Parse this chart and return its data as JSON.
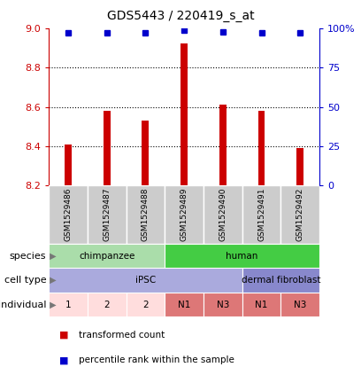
{
  "title": "GDS5443 / 220419_s_at",
  "samples": [
    "GSM1529486",
    "GSM1529487",
    "GSM1529488",
    "GSM1529489",
    "GSM1529490",
    "GSM1529491",
    "GSM1529492"
  ],
  "transformed_counts": [
    8.41,
    8.58,
    8.53,
    8.92,
    8.61,
    8.58,
    8.39
  ],
  "percentile_ranks": [
    97,
    97,
    97,
    99,
    97.5,
    97,
    97
  ],
  "ylim": [
    8.2,
    9.0
  ],
  "yticks": [
    8.2,
    8.4,
    8.6,
    8.8,
    9.0
  ],
  "y2lim": [
    0,
    100
  ],
  "y2ticks": [
    0,
    25,
    50,
    75,
    100
  ],
  "y2ticklabels": [
    "0",
    "25",
    "50",
    "75",
    "100%"
  ],
  "bar_color": "#cc0000",
  "dot_color": "#0000cc",
  "bar_bottom": 8.2,
  "grid_lines": [
    8.4,
    8.6,
    8.8
  ],
  "species": [
    {
      "label": "chimpanzee",
      "start": 0,
      "end": 3,
      "color": "#aaddaa"
    },
    {
      "label": "human",
      "start": 3,
      "end": 7,
      "color": "#44cc44"
    }
  ],
  "cell_type": [
    {
      "label": "iPSC",
      "start": 0,
      "end": 5,
      "color": "#aaaadd"
    },
    {
      "label": "dermal fibroblast",
      "start": 5,
      "end": 7,
      "color": "#8888cc"
    }
  ],
  "individual": [
    {
      "label": "1",
      "start": 0,
      "end": 1,
      "color": "#ffdddd"
    },
    {
      "label": "2",
      "start": 1,
      "end": 2,
      "color": "#ffdddd"
    },
    {
      "label": "2",
      "start": 2,
      "end": 3,
      "color": "#ffdddd"
    },
    {
      "label": "N1",
      "start": 3,
      "end": 4,
      "color": "#dd7777"
    },
    {
      "label": "N3",
      "start": 4,
      "end": 5,
      "color": "#dd7777"
    },
    {
      "label": "N1",
      "start": 5,
      "end": 6,
      "color": "#dd7777"
    },
    {
      "label": "N3",
      "start": 6,
      "end": 7,
      "color": "#dd7777"
    }
  ],
  "sample_bg_color": "#cccccc",
  "sample_sep_color": "#ffffff",
  "legend_items": [
    {
      "color": "#cc0000",
      "label": "transformed count"
    },
    {
      "color": "#0000cc",
      "label": "percentile rank within the sample"
    }
  ],
  "bar_width": 0.18,
  "marker_size": 5
}
